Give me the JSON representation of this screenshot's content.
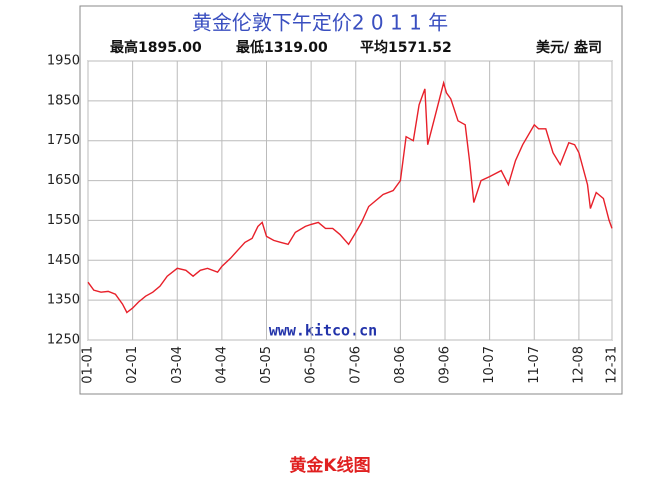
{
  "chart_data": {
    "type": "line",
    "title": "黄金伦敦下午定价2 0 1 1 年",
    "annotations": [
      "最高1895.00",
      "最低1319.00",
      "平均1571.52",
      "美元/ 盎司",
      "www.kitco.cn"
    ],
    "caption": "黄金K线图",
    "x": [
      "01-01",
      "01-05",
      "01-10",
      "01-15",
      "01-20",
      "01-25",
      "01-28",
      "02-01",
      "02-05",
      "02-10",
      "02-15",
      "02-20",
      "02-25",
      "03-04",
      "03-10",
      "03-15",
      "03-20",
      "03-25",
      "04-01",
      "04-04",
      "04-10",
      "04-15",
      "04-20",
      "04-25",
      "04-29",
      "05-02",
      "05-05",
      "05-10",
      "05-15",
      "05-20",
      "05-25",
      "06-01",
      "06-05",
      "06-10",
      "06-15",
      "06-20",
      "06-25",
      "07-01",
      "07-06",
      "07-10",
      "07-15",
      "07-20",
      "07-25",
      "08-01",
      "08-06",
      "08-10",
      "08-15",
      "08-19",
      "08-23",
      "08-25",
      "08-30",
      "09-05",
      "09-07",
      "09-10",
      "09-15",
      "09-20",
      "09-23",
      "09-26",
      "10-01",
      "10-07",
      "10-15",
      "10-20",
      "10-25",
      "10-30",
      "11-07",
      "11-10",
      "11-15",
      "11-20",
      "11-25",
      "12-01",
      "12-05",
      "12-08",
      "12-14",
      "12-16",
      "12-20",
      "12-25",
      "12-29",
      "12-31"
    ],
    "series": [
      {
        "name": "Gold",
        "color": "#e8202a",
        "values": [
          1395,
          1375,
          1370,
          1372,
          1365,
          1340,
          1319,
          1330,
          1345,
          1360,
          1370,
          1385,
          1410,
          1430,
          1425,
          1410,
          1425,
          1430,
          1420,
          1435,
          1455,
          1475,
          1495,
          1505,
          1535,
          1545,
          1510,
          1500,
          1495,
          1490,
          1520,
          1535,
          1540,
          1545,
          1530,
          1530,
          1515,
          1490,
          1520,
          1545,
          1585,
          1600,
          1615,
          1625,
          1650,
          1760,
          1750,
          1840,
          1880,
          1740,
          1810,
          1895,
          1870,
          1855,
          1800,
          1790,
          1700,
          1595,
          1650,
          1660,
          1675,
          1640,
          1700,
          1740,
          1790,
          1780,
          1780,
          1720,
          1690,
          1745,
          1740,
          1720,
          1640,
          1580,
          1620,
          1605,
          1550,
          1530
        ]
      }
    ],
    "xlim": [
      "01-01",
      "12-31"
    ],
    "xticks": [
      "01-01",
      "02-01",
      "03-04",
      "04-04",
      "05-05",
      "06-05",
      "07-06",
      "08-06",
      "09-06",
      "10-07",
      "11-07",
      "12-08",
      "12-31"
    ],
    "ylim": [
      1250,
      1950
    ],
    "yticks": [
      1250,
      1350,
      1450,
      1550,
      1650,
      1750,
      1850,
      1950
    ],
    "grid": true
  }
}
